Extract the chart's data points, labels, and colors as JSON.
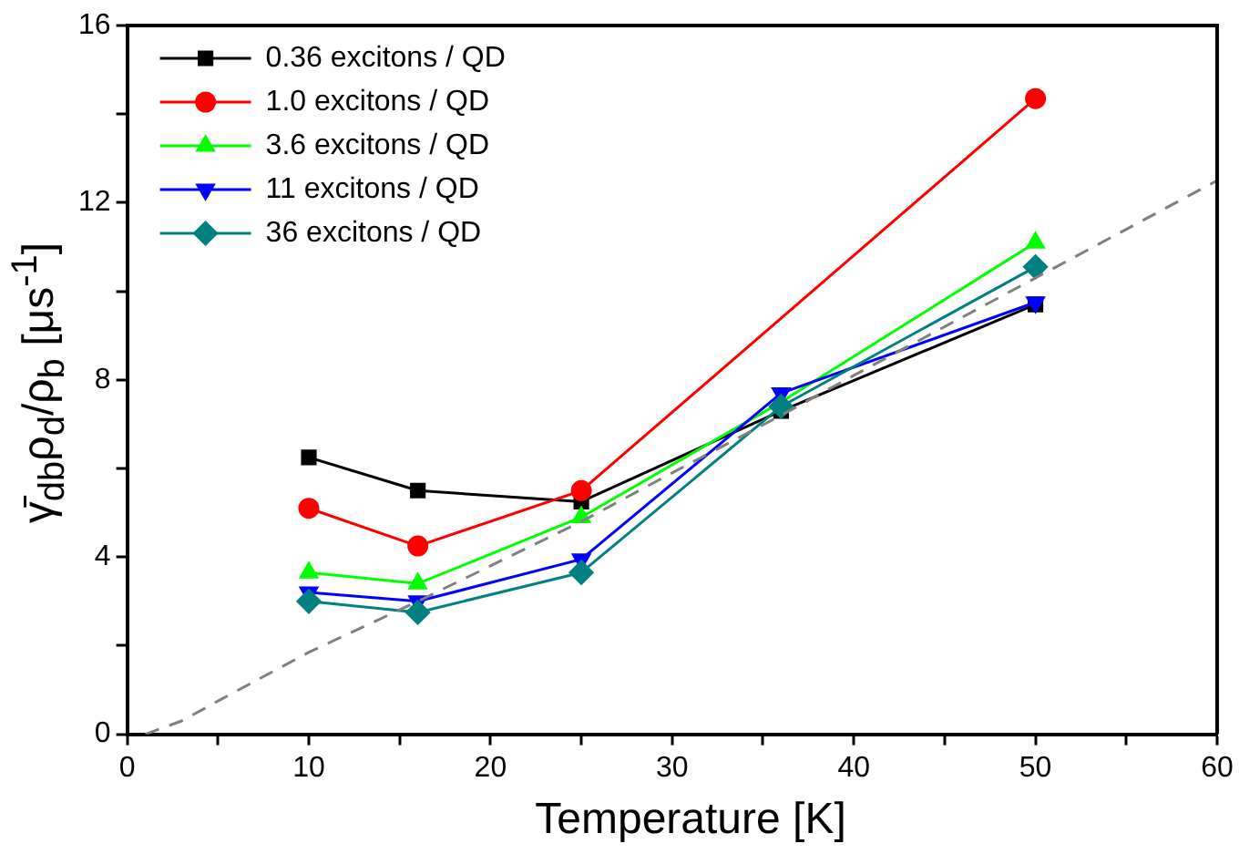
{
  "chart_data": {
    "type": "line",
    "xlabel": "Temperature [K]",
    "ylabel": "γ̄$_{db}$ρ$_{d}$/ρ$_{b}$  [μs$^{-1}$]",
    "xlim": [
      0,
      60
    ],
    "xticks": [
      0,
      {
        "value": 5,
        "label": null
      },
      10,
      {
        "value": 15,
        "label": null
      },
      20,
      {
        "value": 25,
        "label": null
      },
      30,
      {
        "value": 35,
        "label": null
      },
      40,
      {
        "value": 45,
        "label": null
      },
      50,
      {
        "value": 55,
        "label": null
      },
      60
    ],
    "ylim": [
      0,
      16
    ],
    "yticks": [
      0,
      {
        "value": 2,
        "label": null
      },
      4,
      {
        "value": 6,
        "label": null
      },
      8,
      {
        "value": 10,
        "label": null
      },
      12,
      {
        "value": 14,
        "label": null
      },
      16
    ],
    "grid": false,
    "legend": "top left",
    "line_style": "solid",
    "series": [
      {
        "name": "0.36 excitons / QD",
        "color": "#000000",
        "marker": "square",
        "x": [
          10,
          16,
          25,
          36,
          50
        ],
        "values": [
          6.25,
          5.5,
          5.25,
          7.3,
          9.7
        ]
      },
      {
        "name": "1.0 excitons / QD",
        "color": "#ff0000",
        "marker": "circle",
        "x": [
          10,
          16,
          25,
          50
        ],
        "values": [
          5.1,
          4.25,
          5.5,
          14.35
        ]
      },
      {
        "name": "3.6 excitons / QD",
        "color": "#00ff00",
        "marker": "triangle",
        "x": [
          10,
          16,
          25,
          36,
          50
        ],
        "values": [
          3.65,
          3.4,
          4.9,
          7.5,
          11.1
        ]
      },
      {
        "name": "11 excitons / QD",
        "color": "#0000ff",
        "marker": "triangle-down",
        "x": [
          10,
          16,
          25,
          36,
          50
        ],
        "values": [
          3.2,
          3.0,
          3.95,
          7.7,
          9.75
        ]
      },
      {
        "name": "36 excitons / QD",
        "color": "#008080",
        "marker": "diamond",
        "x": [
          10,
          16,
          25,
          36,
          50
        ],
        "values": [
          3.0,
          2.75,
          3.65,
          7.4,
          10.55
        ]
      },
      {
        "color": "#808080",
        "marker": "none",
        "line_style": "dashed",
        "x": [
          1,
          3,
          5,
          10,
          16,
          20,
          25,
          30,
          36,
          40,
          50,
          60
        ],
        "values": [
          0,
          0.3,
          0.75,
          1.85,
          3.0,
          3.8,
          4.8,
          5.9,
          7.2,
          8.1,
          10.3,
          12.5
        ]
      }
    ]
  }
}
